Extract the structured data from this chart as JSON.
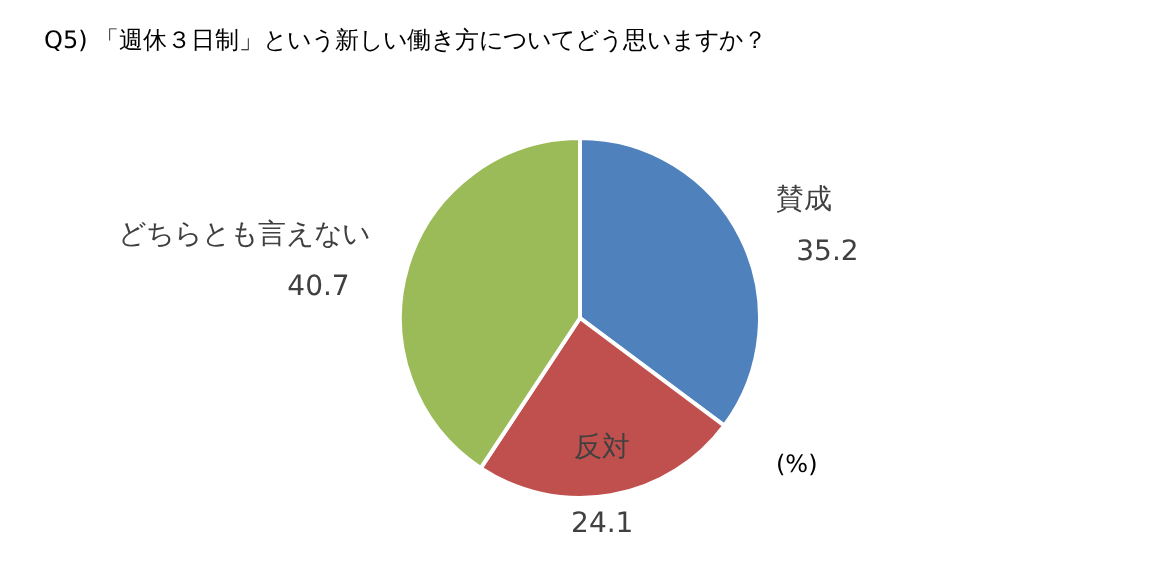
{
  "chart_data": {
    "type": "pie",
    "title": "Q5) 「週休３日制」という新しい働き方についてどう思いますか？",
    "categories": [
      "賛成",
      "反対",
      "どちらとも言えない"
    ],
    "values": [
      35.2,
      24.1,
      40.7
    ],
    "colors": [
      "#4f81bd",
      "#c0504d",
      "#9bbb59"
    ],
    "data_labels": true,
    "annotations": [
      "(%)"
    ]
  }
}
